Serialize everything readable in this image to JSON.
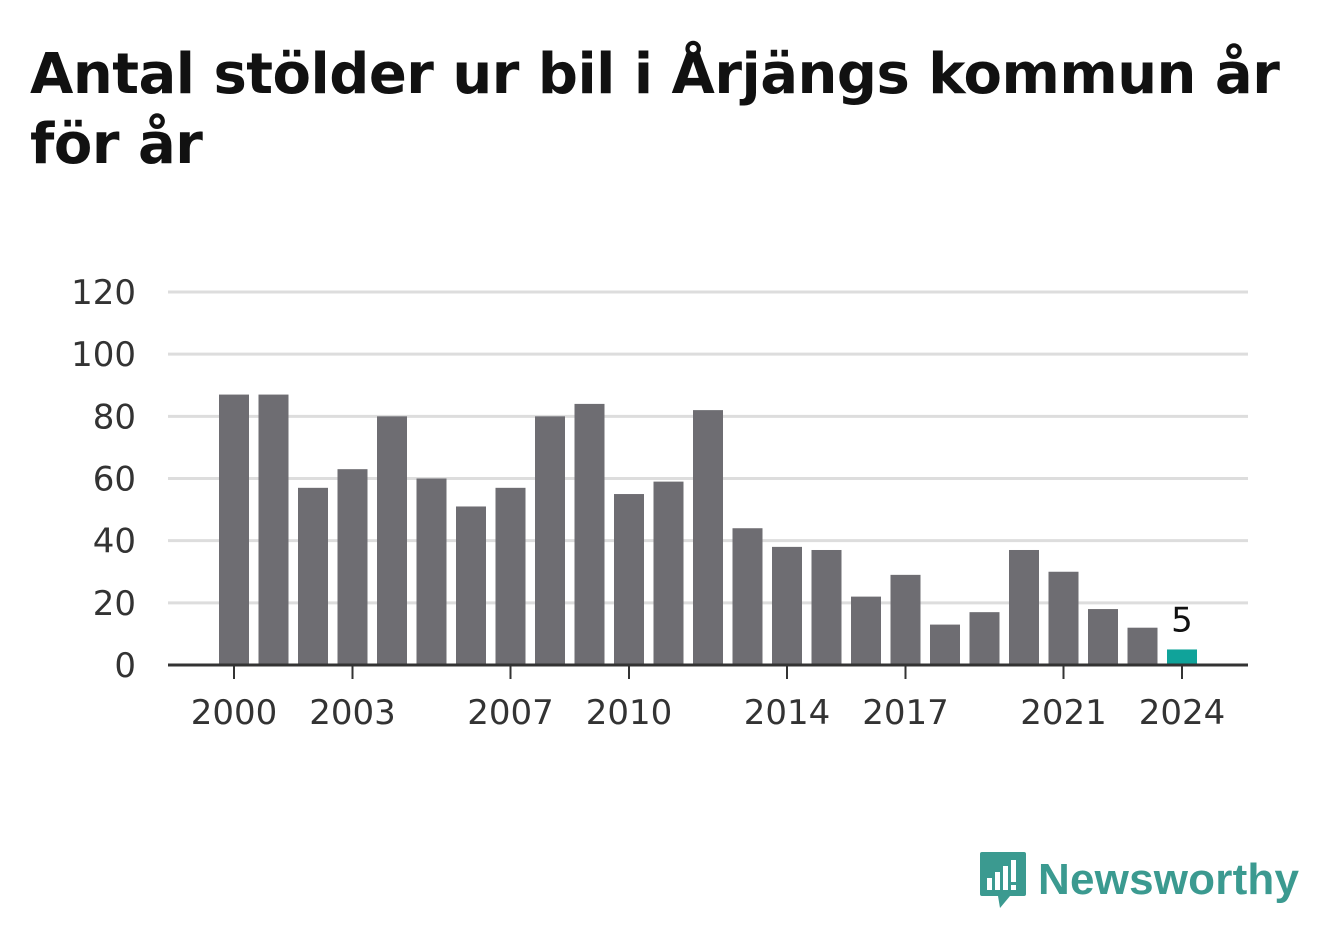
{
  "chart_data": {
    "type": "bar",
    "title": "Antal stölder ur bil i Årjängs kommun år för år",
    "categories": [
      "2000",
      "2001",
      "2002",
      "2003",
      "2004",
      "2005",
      "2006",
      "2007",
      "2008",
      "2009",
      "2010",
      "2011",
      "2012",
      "2013",
      "2014",
      "2015",
      "2016",
      "2017",
      "2018",
      "2019",
      "2020",
      "2021",
      "2022",
      "2023",
      "2024"
    ],
    "values": [
      87,
      87,
      57,
      63,
      80,
      60,
      51,
      57,
      80,
      84,
      55,
      59,
      82,
      44,
      38,
      37,
      22,
      29,
      13,
      17,
      37,
      30,
      18,
      12,
      5
    ],
    "x_tick_labels": [
      "2000",
      "2003",
      "2007",
      "2010",
      "2014",
      "2017",
      "2021",
      "2024"
    ],
    "y_ticks": [
      "0",
      "20",
      "40",
      "60",
      "80",
      "100",
      "120"
    ],
    "ylim": [
      0,
      120
    ],
    "highlight": {
      "category": "2024",
      "label": "5"
    },
    "grid": true,
    "colors": {
      "bar": "#6e6d72",
      "highlight": "#10a39a",
      "grid": "#dddddd",
      "axis": "#333333"
    }
  },
  "brand": {
    "name": "Newsworthy",
    "icon": "bar-chart-speech-bubble-icon",
    "color": "#3b9a90"
  }
}
